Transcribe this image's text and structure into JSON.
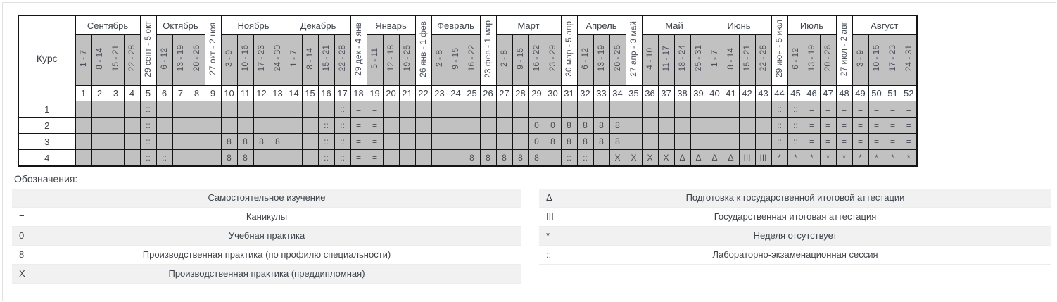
{
  "table": {
    "course_header": "Курс",
    "header_segments": [
      {
        "month": "Сентябрь",
        "span": 4
      },
      {
        "bridge_week": 5
      },
      {
        "month": "Октябрь",
        "span": 3
      },
      {
        "bridge_week": 9
      },
      {
        "month": "Ноябрь",
        "span": 4
      },
      {
        "month": "Декабрь",
        "span": 4
      },
      {
        "bridge_week": 18
      },
      {
        "month": "Январь",
        "span": 3
      },
      {
        "bridge_week": 22
      },
      {
        "month": "Февраль",
        "span": 3
      },
      {
        "bridge_week": 26
      },
      {
        "month": "Март",
        "span": 4
      },
      {
        "bridge_week": 31
      },
      {
        "month": "Апрель",
        "span": 3
      },
      {
        "bridge_week": 35
      },
      {
        "month": "Май",
        "span": 4
      },
      {
        "month": "Июнь",
        "span": 4
      },
      {
        "bridge_week": 44
      },
      {
        "month": "Июль",
        "span": 3
      },
      {
        "bridge_week": 48
      },
      {
        "month": "Август",
        "span": 4
      }
    ],
    "weeks": [
      {
        "n": 1,
        "d": "1 - 7"
      },
      {
        "n": 2,
        "d": "8 - 14"
      },
      {
        "n": 3,
        "d": "15 - 21"
      },
      {
        "n": 4,
        "d": "22 - 28"
      },
      {
        "n": 5,
        "d": "29 сент - 5 окт",
        "bridge": true
      },
      {
        "n": 6,
        "d": "6 - 12"
      },
      {
        "n": 7,
        "d": "13 - 19"
      },
      {
        "n": 8,
        "d": "20 - 26"
      },
      {
        "n": 9,
        "d": "27 окт - 2 ноя",
        "bridge": true
      },
      {
        "n": 10,
        "d": "3 - 9"
      },
      {
        "n": 11,
        "d": "10 - 16"
      },
      {
        "n": 12,
        "d": "17 - 23"
      },
      {
        "n": 13,
        "d": "24 - 30"
      },
      {
        "n": 14,
        "d": "1 - 7"
      },
      {
        "n": 15,
        "d": "8 - 14"
      },
      {
        "n": 16,
        "d": "15 - 21"
      },
      {
        "n": 17,
        "d": "22 - 28"
      },
      {
        "n": 18,
        "d": "29 дек - 4 янв",
        "bridge": true
      },
      {
        "n": 19,
        "d": "5 - 11"
      },
      {
        "n": 20,
        "d": "12 - 18"
      },
      {
        "n": 21,
        "d": "19 - 25"
      },
      {
        "n": 22,
        "d": "26 янв - 1 фев",
        "bridge": true
      },
      {
        "n": 23,
        "d": "2 - 8"
      },
      {
        "n": 24,
        "d": "9 - 15"
      },
      {
        "n": 25,
        "d": "16 - 22"
      },
      {
        "n": 26,
        "d": "23 фев - 1 мар",
        "bridge": true
      },
      {
        "n": 27,
        "d": "2 - 8"
      },
      {
        "n": 28,
        "d": "9 - 15"
      },
      {
        "n": 29,
        "d": "16 - 22"
      },
      {
        "n": 30,
        "d": "23 - 29"
      },
      {
        "n": 31,
        "d": "30 мар - 5 апр",
        "bridge": true
      },
      {
        "n": 32,
        "d": "6 - 12"
      },
      {
        "n": 33,
        "d": "13 - 19"
      },
      {
        "n": 34,
        "d": "20 - 26"
      },
      {
        "n": 35,
        "d": "27 апр - 3 май",
        "bridge": true
      },
      {
        "n": 36,
        "d": "4 - 10"
      },
      {
        "n": 37,
        "d": "11 - 17"
      },
      {
        "n": 38,
        "d": "18 - 24"
      },
      {
        "n": 39,
        "d": "25 - 31"
      },
      {
        "n": 40,
        "d": "1 - 7"
      },
      {
        "n": 41,
        "d": "8 - 14"
      },
      {
        "n": 42,
        "d": "15 - 21"
      },
      {
        "n": 43,
        "d": "22 - 28"
      },
      {
        "n": 44,
        "d": "29 июн - 5 июл",
        "bridge": true
      },
      {
        "n": 45,
        "d": "6 - 12"
      },
      {
        "n": 46,
        "d": "13 - 19"
      },
      {
        "n": 47,
        "d": "20 - 26"
      },
      {
        "n": 48,
        "d": "27 июл - 2 авг",
        "bridge": true
      },
      {
        "n": 49,
        "d": "3 - 9"
      },
      {
        "n": 50,
        "d": "10 - 16"
      },
      {
        "n": 51,
        "d": "17 - 23"
      },
      {
        "n": 52,
        "d": "24 - 31"
      }
    ],
    "courses": [
      {
        "label": "1",
        "cells": [
          "",
          "",
          "",
          "",
          "::",
          "",
          "",
          "",
          "",
          "",
          "",
          "",
          "",
          "",
          "",
          "",
          "::",
          "=",
          "=",
          "",
          "",
          "",
          "",
          "",
          "",
          "",
          "",
          "",
          "",
          "",
          "",
          "",
          "",
          "",
          "",
          "",
          "",
          "",
          "",
          "",
          "",
          "",
          "",
          "::",
          "::",
          "=",
          "=",
          "=",
          "=",
          "=",
          "=",
          "="
        ]
      },
      {
        "label": "2",
        "cells": [
          "",
          "",
          "",
          "",
          "::",
          "",
          "",
          "",
          "",
          "",
          "",
          "",
          "",
          "",
          "",
          "::",
          "::",
          "=",
          "=",
          "",
          "",
          "",
          "",
          "",
          "",
          "",
          "",
          "",
          "0",
          "0",
          "8",
          "8",
          "8",
          "8",
          "",
          "",
          "",
          "",
          "",
          "",
          "",
          "",
          "",
          "::",
          "::",
          "=",
          "=",
          "=",
          "=",
          "=",
          "=",
          "="
        ]
      },
      {
        "label": "3",
        "cells": [
          "",
          "",
          "",
          "",
          "::",
          "",
          "",
          "",
          "",
          "8",
          "8",
          "8",
          "8",
          "",
          "",
          "::",
          "::",
          "=",
          "=",
          "",
          "",
          "",
          "",
          "",
          "",
          "",
          "",
          "",
          "0",
          "8",
          "8",
          "8",
          "8",
          "8",
          "",
          "",
          "",
          "",
          "",
          "",
          "",
          "",
          "",
          "::",
          "::",
          "=",
          "=",
          "=",
          "=",
          "=",
          "=",
          "="
        ]
      },
      {
        "label": "4",
        "cells": [
          "",
          "",
          "",
          "",
          "::",
          "::",
          "",
          "",
          "",
          "8",
          "8",
          "",
          "",
          "",
          "",
          "::",
          "::",
          "=",
          "=",
          "",
          "",
          "",
          "",
          "",
          "8",
          "8",
          "8",
          "8",
          "8",
          "",
          "::",
          "::",
          "",
          "X",
          "X",
          "X",
          "X",
          "Δ",
          "Δ",
          "Δ",
          "Δ",
          "III",
          "III",
          "*",
          "*",
          "*",
          "*",
          "*",
          "*",
          "*",
          "*",
          "*"
        ]
      }
    ]
  },
  "legend": {
    "heading": "Обозначения:",
    "left": [
      {
        "symbol": "",
        "label": "Самостоятельное изучение"
      },
      {
        "symbol": "=",
        "label": "Каникулы"
      },
      {
        "symbol": "0",
        "label": "Учебная практика"
      },
      {
        "symbol": "8",
        "label": "Производственная практика (по профилю специальности)"
      },
      {
        "symbol": "X",
        "label": "Производственная практика (преддипломная)"
      }
    ],
    "right": [
      {
        "symbol": "Δ",
        "label": "Подготовка к государственной итоговой аттестации"
      },
      {
        "symbol": "III",
        "label": "Государственная итоговая аттестация"
      },
      {
        "symbol": "*",
        "label": "Неделя отсутствует"
      },
      {
        "symbol": "::",
        "label": "Лабораторно-экзаменационная сессия"
      }
    ]
  },
  "colors": {
    "cell_gray": "#c1c1c1",
    "table_border": "#141414",
    "legend_stripe": "#f1f1f2",
    "panel_border": "#e0e0e0",
    "text": "#3e444c"
  }
}
